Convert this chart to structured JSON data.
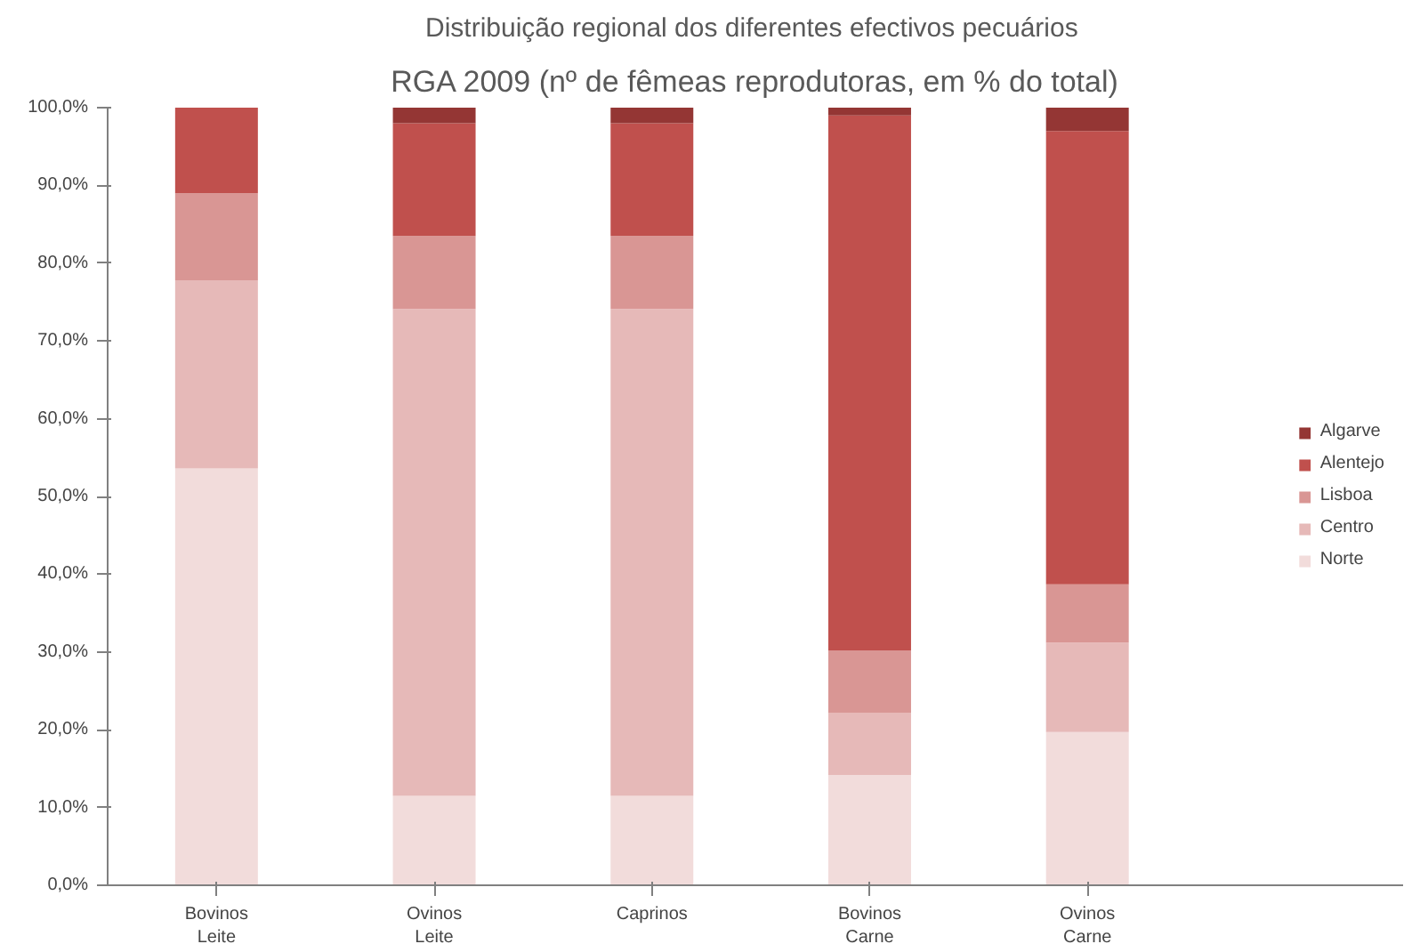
{
  "chart_data": {
    "type": "bar",
    "stacked": true,
    "title": "Distribuição regional dos diferentes efectivos  pecuários",
    "subtitle": "RGA 2009 (nº de fêmeas reprodutoras, em % do total)",
    "categories": [
      "Bovinos\nLeite",
      "Ovinos\nLeite",
      "Caprinos",
      "Bovinos\nCarne",
      "Ovinos\nCarne"
    ],
    "series": [
      {
        "name": "Norte",
        "color": "#f2dcdb",
        "values": [
          53.6,
          11.5,
          11.5,
          14.2,
          19.7
        ]
      },
      {
        "name": "Centro",
        "color": "#e6b9b8",
        "values": [
          24.2,
          62.6,
          62.6,
          8.0,
          11.5
        ]
      },
      {
        "name": "Lisboa",
        "color": "#d99694",
        "values": [
          11.2,
          9.4,
          9.4,
          8.0,
          7.5
        ]
      },
      {
        "name": "Alentejo",
        "color": "#c0504d",
        "values": [
          11.0,
          14.5,
          14.5,
          68.8,
          58.3
        ]
      },
      {
        "name": "Algarve",
        "color": "#943634",
        "values": [
          0.0,
          2.0,
          2.0,
          1.0,
          3.0
        ]
      }
    ],
    "ylim": [
      0,
      100
    ],
    "yticks": [
      {
        "value": 0,
        "label": "0,0%"
      },
      {
        "value": 10,
        "label": "10,0%"
      },
      {
        "value": 20,
        "label": "20,0%"
      },
      {
        "value": 30,
        "label": "30,0%"
      },
      {
        "value": 40,
        "label": "40,0%"
      },
      {
        "value": 50,
        "label": "50,0%"
      },
      {
        "value": 60,
        "label": "60,0%"
      },
      {
        "value": 70,
        "label": "70,0%"
      },
      {
        "value": 80,
        "label": "80,0%"
      },
      {
        "value": 90,
        "label": "90,0%"
      },
      {
        "value": 100,
        "label": "100,0%"
      }
    ],
    "legend": "right"
  }
}
